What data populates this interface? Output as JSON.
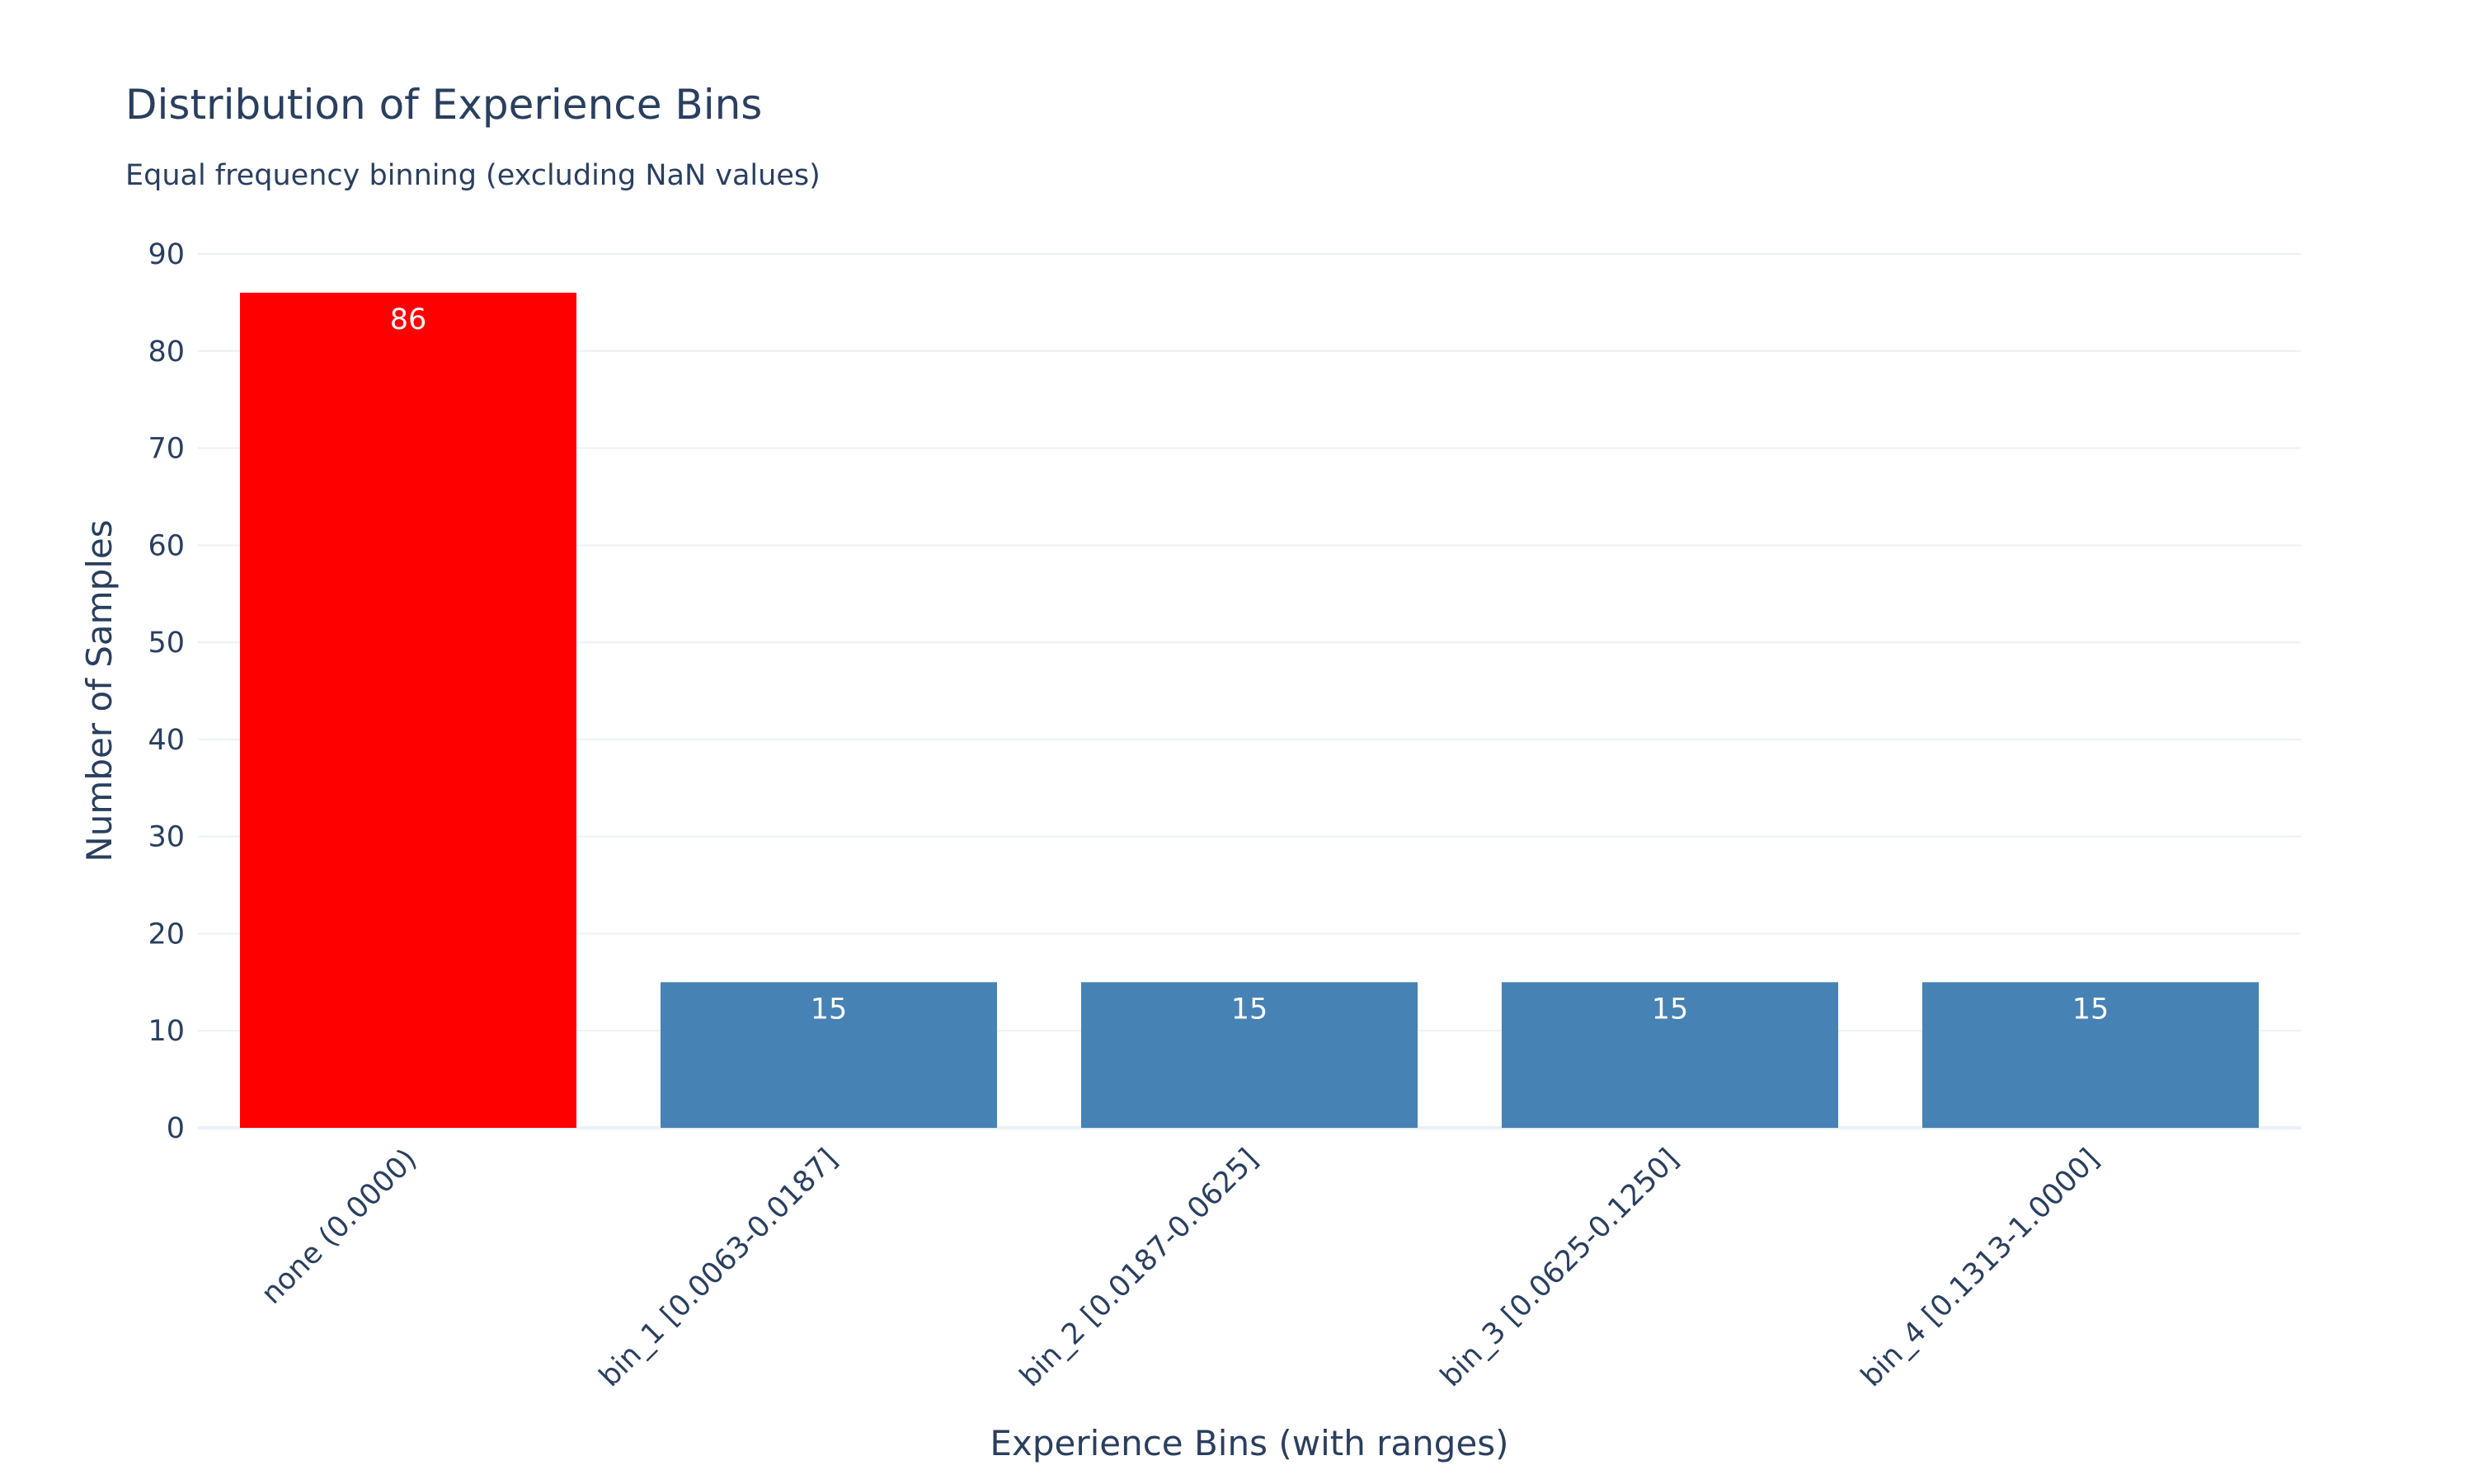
{
  "chart_data": {
    "type": "bar",
    "title": "Distribution of Experience Bins",
    "subtitle": "Equal frequency binning (excluding NaN values)",
    "xlabel": "Experience Bins (with ranges)",
    "ylabel": "Number of Samples",
    "categories": [
      "none (0.0000)",
      "bin_1 [0.0063-0.0187]",
      "bin_2 [0.0187-0.0625]",
      "bin_3 [0.0625-0.1250]",
      "bin_4 [0.1313-1.0000]"
    ],
    "values": [
      86,
      15,
      15,
      15,
      15
    ],
    "bar_colors": [
      "#ff0000",
      "#4682b4",
      "#4682b4",
      "#4682b4",
      "#4682b4"
    ],
    "ylim": [
      0,
      90
    ],
    "yticks": [
      0,
      10,
      20,
      30,
      40,
      50,
      60,
      70,
      80,
      90
    ],
    "grid": true,
    "colors": {
      "text": "#2a3f5f",
      "grid": "#ebf0f8",
      "label": "#ffffff"
    }
  }
}
